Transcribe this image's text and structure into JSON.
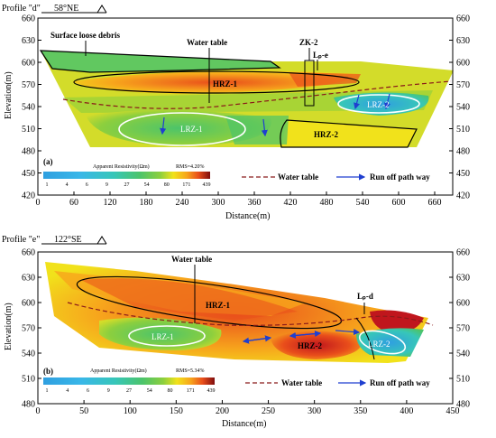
{
  "palette": [
    "#2f9fe0",
    "#39b7e8",
    "#37c6b9",
    "#4cc46a",
    "#8ccf3e",
    "#d3dc2a",
    "#f1e21b",
    "#f7a51c",
    "#e94e1b",
    "#c0161d",
    "#7f0d0d"
  ],
  "panels": [
    {
      "id": "a",
      "profile": "Profile \"d\"",
      "direction": "58°NE",
      "panel_tag": "(a)",
      "x_ticks": [
        "0",
        "60",
        "120",
        "180",
        "240",
        "300",
        "360",
        "420",
        "480",
        "540",
        "600",
        "660"
      ],
      "y_ticks": [
        "660",
        "630",
        "600",
        "570",
        "540",
        "510",
        "480",
        "450",
        "420"
      ],
      "xlabel": "Distance(m)",
      "ylabel": "Elevation(m)",
      "labels": {
        "debris": "Surface loose debris",
        "water_table": "Water table",
        "zk": "ZK-2",
        "lpe": "Lₚ-e",
        "hrz1": "HRZ-1",
        "hrz2": "HRZ-2",
        "lrz1": "LRZ-1",
        "lrz2": "LRZ-2"
      },
      "colorbar": {
        "title": "Apparent Resistivity(Ωm)",
        "rms": "RMS=4.20%",
        "ticks": [
          "1",
          "4",
          "6",
          "9",
          "27",
          "54",
          "80",
          "171",
          "439"
        ]
      },
      "legend": {
        "water_table": "Water table",
        "run_off": "Run off path way"
      }
    },
    {
      "id": "b",
      "profile": "Profile \"e\"",
      "direction": "122°SE",
      "panel_tag": "(b)",
      "x_ticks": [
        "0",
        "50",
        "100",
        "150",
        "200",
        "250",
        "300",
        "350",
        "400",
        "450"
      ],
      "y_ticks": [
        "660",
        "630",
        "600",
        "570",
        "540",
        "510",
        "480"
      ],
      "xlabel": "Distance(m)",
      "ylabel": "Elevation(m)",
      "labels": {
        "water_table": "Water table",
        "lpd": "Lₚ-d",
        "hrz1": "HRZ-1",
        "hrz2": "HRZ-2",
        "lrz1": "LRZ-1",
        "lrz2": "LRZ-2"
      },
      "colorbar": {
        "title": "Apparent Resistivity(Ωm)",
        "rms": "RMS=5.34%",
        "ticks": [
          "1",
          "4",
          "6",
          "9",
          "27",
          "54",
          "80",
          "171",
          "439"
        ]
      },
      "legend": {
        "water_table": "Water table",
        "run_off": "Run off path way"
      }
    }
  ]
}
